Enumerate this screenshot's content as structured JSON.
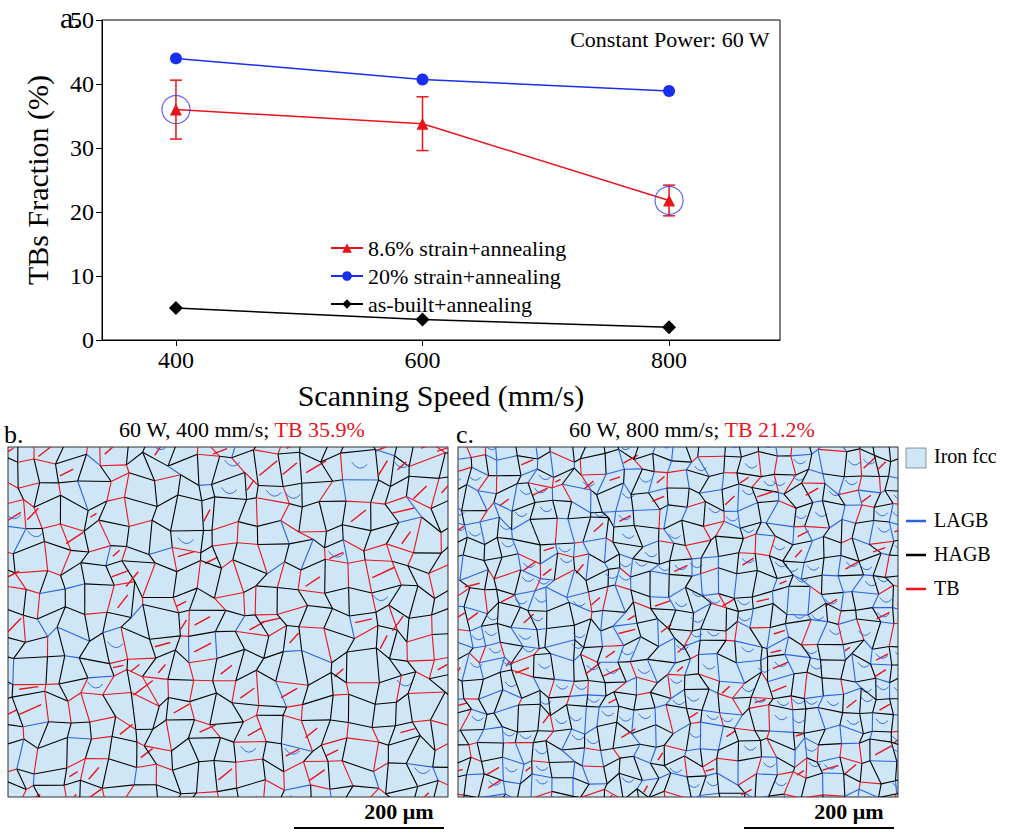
{
  "chart_data": {
    "type": "line",
    "panel": "a.",
    "annotation": "Constant Power: 60 W",
    "x_label": "Scanning Speed (mm/s)",
    "y_label": "TBs Fraction (%)",
    "x": [
      400,
      600,
      800
    ],
    "xlim": [
      340,
      890
    ],
    "xticks": [
      400,
      600,
      800
    ],
    "ylim": [
      0,
      50
    ],
    "yticks": [
      0,
      10,
      20,
      30,
      40,
      50
    ],
    "grid": false,
    "legend": "center",
    "highlighted_x": [
      400,
      800
    ],
    "series": [
      {
        "name": "8.6% strain+annealing",
        "color": "#e8141c",
        "marker": "triangle",
        "values": [
          36.0,
          33.8,
          21.8
        ],
        "errors": [
          4.6,
          4.2,
          2.4
        ]
      },
      {
        "name": "20% strain+annealing",
        "color": "#1a2ef0",
        "marker": "circle",
        "values": [
          44.0,
          40.7,
          38.9
        ]
      },
      {
        "name": "as-built+annealing",
        "color": "#000000",
        "marker": "diamond",
        "values": [
          5.0,
          3.2,
          2.0
        ]
      }
    ]
  },
  "maps": [
    {
      "panel": "b.",
      "title": "60 W, 400 mm/s;",
      "tb_label": "TB 35.9%",
      "scale_bar": "200 μm"
    },
    {
      "panel": "c.",
      "title": "60 W, 800 mm/s;",
      "tb_label": "TB 21.2%",
      "scale_bar": "200 μm"
    }
  ],
  "map_legend": [
    {
      "label": "Iron fcc",
      "color": "#cfe6f6",
      "marker": "square"
    },
    {
      "label": "LAGB",
      "color": "#2a62e6",
      "marker": "line"
    },
    {
      "label": "HAGB",
      "color": "#000000",
      "marker": "line"
    },
    {
      "label": "TB",
      "color": "#e8141c",
      "marker": "line"
    }
  ]
}
